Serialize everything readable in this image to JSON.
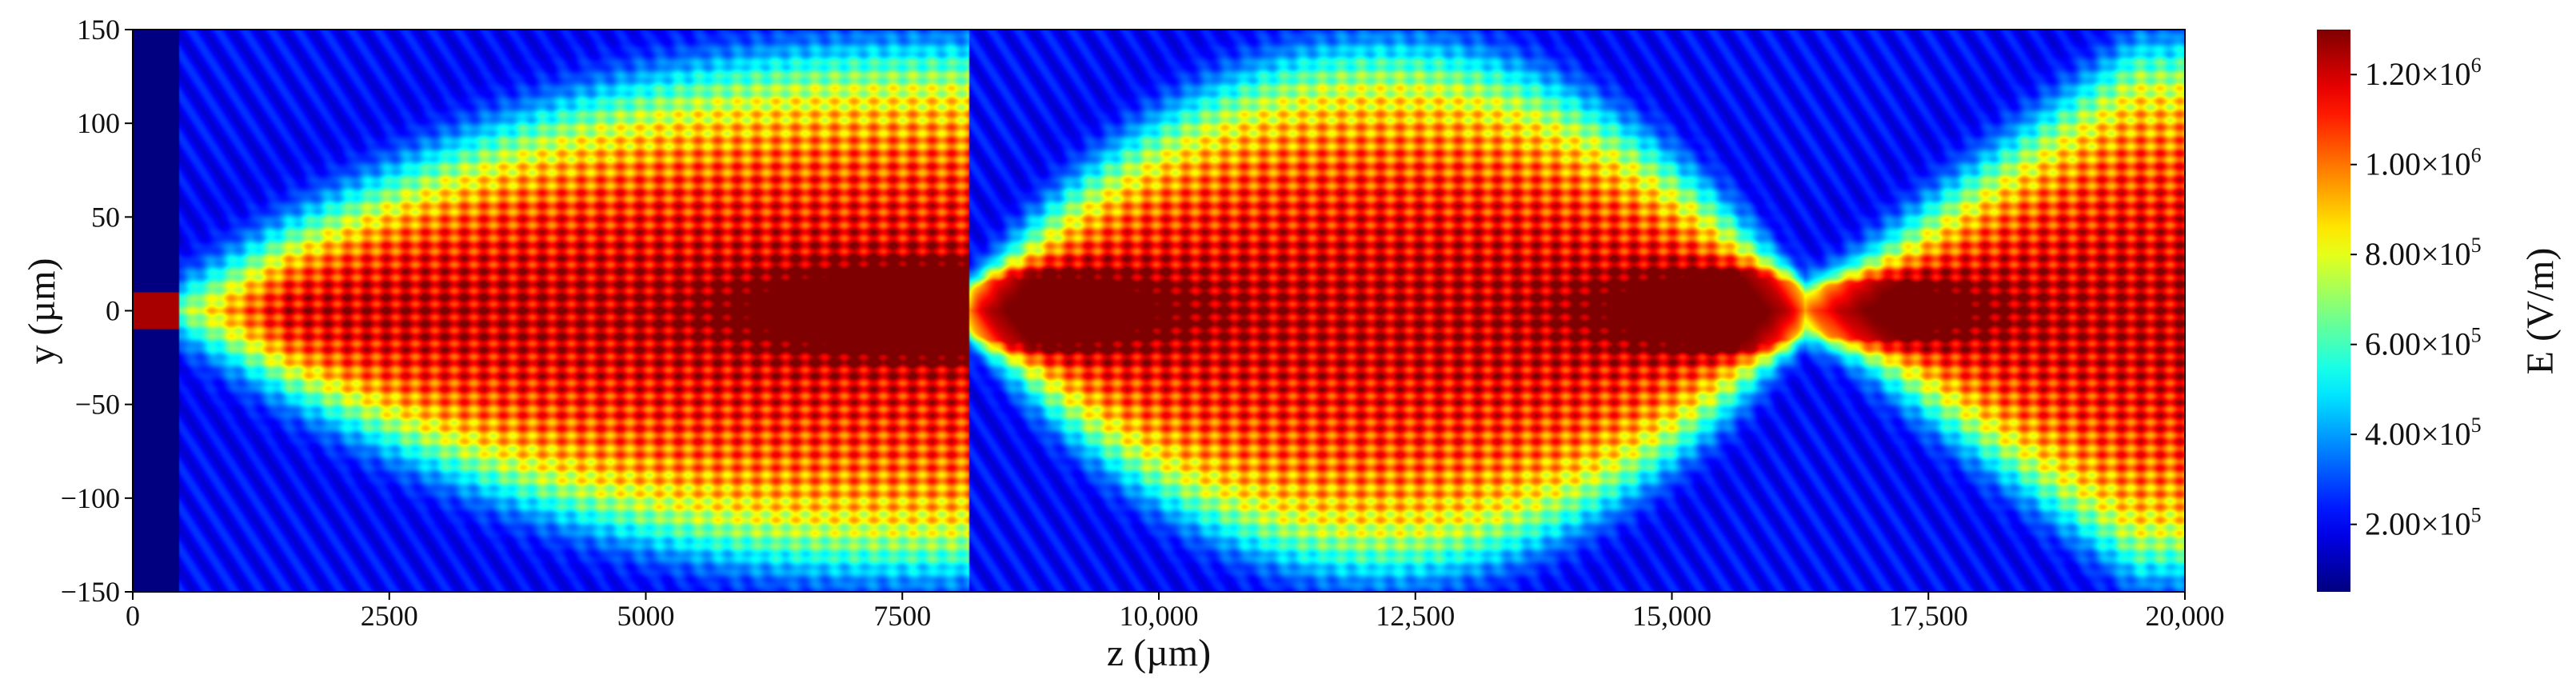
{
  "chart_data": {
    "type": "heatmap",
    "title": "",
    "xlabel": "z (µm)",
    "ylabel": "y (µm)",
    "xlim": [
      0,
      20000
    ],
    "ylim": [
      -150,
      150
    ],
    "x_ticks": [
      0,
      2500,
      5000,
      7500,
      10000,
      12500,
      15000,
      17500,
      20000
    ],
    "x_tick_labels": [
      "0",
      "2500",
      "5000",
      "7500",
      "10,000",
      "12,500",
      "15,000",
      "17,500",
      "20,000"
    ],
    "y_ticks": [
      150,
      100,
      50,
      0,
      -50,
      -100,
      -150
    ],
    "y_tick_labels": [
      "150",
      "100",
      "50",
      "0",
      "−50",
      "−100",
      "−150"
    ],
    "colorbar": {
      "label": "E (V/m)",
      "range": [
        50000,
        1300000
      ],
      "colormap": "jet",
      "ticks": [
        1200000,
        1000000,
        800000,
        600000,
        400000,
        200000
      ],
      "tick_labels": [
        {
          "mantissa": "1.20×10",
          "exp": "6"
        },
        {
          "mantissa": "1.00×10",
          "exp": "6"
        },
        {
          "mantissa": "8.00×10",
          "exp": "5"
        },
        {
          "mantissa": "6.00×10",
          "exp": "5"
        },
        {
          "mantissa": "4.00×10",
          "exp": "5"
        },
        {
          "mantissa": "2.00×10",
          "exp": "5"
        }
      ]
    },
    "field_description": {
      "foci_z": [
        8150,
        16300
      ],
      "waist_half_width_um": 8,
      "max_half_width_um": 150,
      "peak_field": 1300000,
      "background_field": 150000
    }
  }
}
